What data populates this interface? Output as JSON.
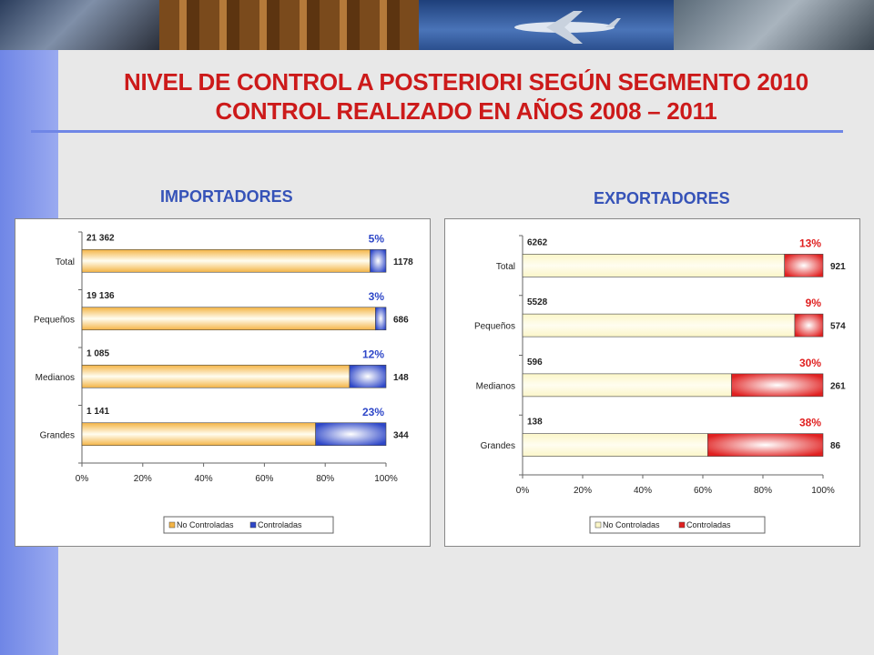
{
  "title": {
    "line1": "NIVEL DE  CONTROL A POSTERIORI SEGÚN SEGMENTO 2010",
    "line2": "CONTROL REALIZADO EN AÑOS 2008 – 2011"
  },
  "sections": {
    "left": "IMPORTADORES",
    "right": "EXPORTADORES"
  },
  "colors": {
    "title": "#cc1a1a",
    "section": "#3653b8",
    "sidebar": "#6f86e6"
  },
  "chart_data": [
    {
      "type": "bar",
      "orientation": "horizontal",
      "stacked": "percent",
      "categories": [
        "Total",
        "Pequeños",
        "Medianos",
        "Grandes"
      ],
      "series": [
        {
          "name": "No Controladas",
          "color": "#f4b445",
          "values": [
            21362,
            19136,
            1085,
            1141
          ],
          "labels": [
            "21 362",
            "19 136",
            "1 085",
            "1 141"
          ]
        },
        {
          "name": "Controladas",
          "color": "#2e47c8",
          "values": [
            1178,
            686,
            148,
            344
          ],
          "labels": [
            "1178",
            "686",
            "148",
            "344"
          ]
        }
      ],
      "percent_labels": [
        "5%",
        "3%",
        "12%",
        "23%"
      ],
      "percent_label_color": "#2e47c8",
      "x_ticks": [
        "0%",
        "20%",
        "40%",
        "60%",
        "80%",
        "100%"
      ],
      "xlim": [
        0,
        100
      ],
      "legend": "bottom"
    },
    {
      "type": "bar",
      "orientation": "horizontal",
      "stacked": "percent",
      "categories": [
        "Total",
        "Pequeños",
        "Medianos",
        "Grandes"
      ],
      "series": [
        {
          "name": "No Controladas",
          "color": "#fbf6c8",
          "values": [
            6262,
            5528,
            596,
            138
          ],
          "labels": [
            "6262",
            "5528",
            "596",
            "138"
          ]
        },
        {
          "name": "Controladas",
          "color": "#e02020",
          "values": [
            921,
            574,
            261,
            86
          ],
          "labels": [
            "921",
            "574",
            "261",
            "86"
          ]
        }
      ],
      "percent_labels": [
        "13%",
        "9%",
        "30%",
        "38%"
      ],
      "percent_label_color": "#e02020",
      "x_ticks": [
        "0%",
        "20%",
        "40%",
        "60%",
        "80%",
        "100%"
      ],
      "xlim": [
        0,
        100
      ],
      "legend": "bottom"
    }
  ]
}
